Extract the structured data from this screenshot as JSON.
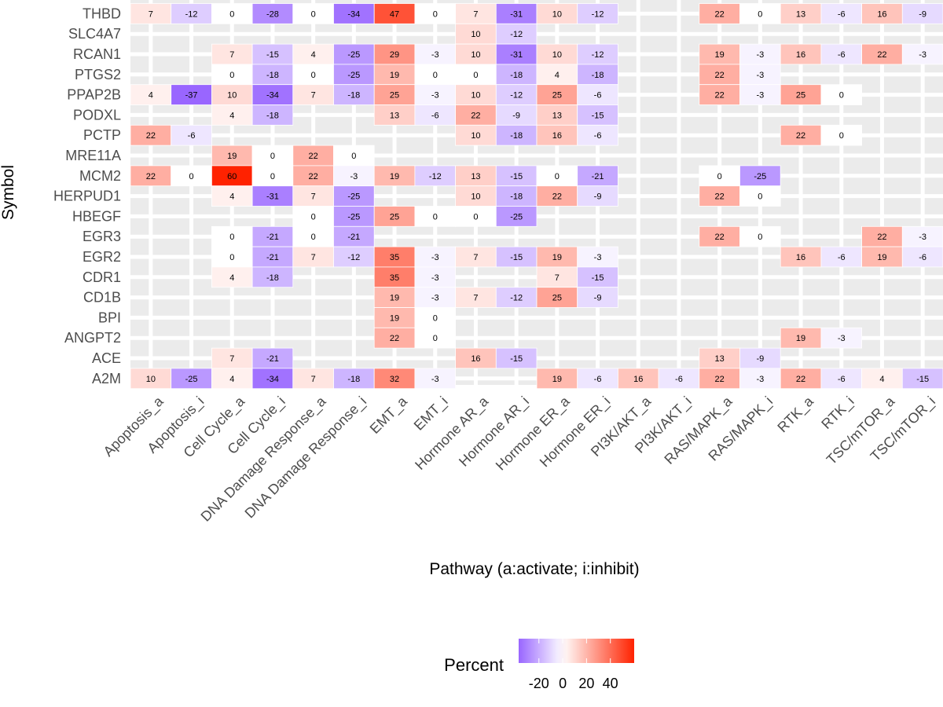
{
  "chart_data": {
    "type": "heatmap",
    "xlabel": "Pathway (a:activate; i:inhibit)",
    "ylabel": "Symbol",
    "legend_title": "Percent",
    "legend_position": "bottom",
    "grid": true,
    "color_scale": {
      "low": "#9966ff",
      "mid": "#ffffff",
      "high": "#ff2200",
      "limits": [
        -37,
        60
      ]
    },
    "legend_ticks": [
      -20,
      0,
      20,
      40
    ],
    "columns": [
      "Apoptosis_a",
      "Apoptosis_i",
      "Cell Cycle_a",
      "Cell Cycle_i",
      "DNA Damage Response_a",
      "DNA Damage Response_i",
      "EMT_a",
      "EMT_i",
      "Hormone AR_a",
      "Hormone AR_i",
      "Hormone ER_a",
      "Hormone ER_i",
      "PI3K/AKT_a",
      "PI3K/AKT_i",
      "RAS/MAPK_a",
      "RAS/MAPK_i",
      "RTK_a",
      "RTK_i",
      "TSC/mTOR_a",
      "TSC/mTOR_i"
    ],
    "rows": [
      "THBD",
      "SLC4A7",
      "RCAN1",
      "PTGS2",
      "PPAP2B",
      "PODXL",
      "PCTP",
      "MRE11A",
      "MCM2",
      "HERPUD1",
      "HBEGF",
      "EGR3",
      "EGR2",
      "CDR1",
      "CD1B",
      "BPI",
      "ANGPT2",
      "ACE",
      "A2M"
    ],
    "values": [
      [
        7,
        -12,
        0,
        -28,
        0,
        -34,
        47,
        0,
        7,
        -31,
        10,
        -12,
        null,
        null,
        22,
        0,
        13,
        -6,
        16,
        -9
      ],
      [
        null,
        null,
        null,
        null,
        null,
        null,
        null,
        null,
        10,
        -12,
        null,
        null,
        null,
        null,
        null,
        null,
        null,
        null,
        null,
        null
      ],
      [
        null,
        null,
        7,
        -15,
        4,
        -25,
        29,
        -3,
        10,
        -31,
        10,
        -12,
        null,
        null,
        19,
        -3,
        16,
        -6,
        22,
        -3
      ],
      [
        null,
        null,
        0,
        -18,
        0,
        -25,
        19,
        0,
        0,
        -18,
        4,
        -18,
        null,
        null,
        22,
        -3,
        null,
        null,
        null,
        null
      ],
      [
        4,
        -37,
        10,
        -34,
        7,
        -18,
        25,
        -3,
        10,
        -12,
        25,
        -6,
        null,
        null,
        22,
        -3,
        25,
        0,
        null,
        null
      ],
      [
        null,
        null,
        4,
        -18,
        null,
        null,
        13,
        -6,
        22,
        -9,
        13,
        -15,
        null,
        null,
        null,
        null,
        null,
        null,
        null,
        null
      ],
      [
        22,
        -6,
        null,
        null,
        null,
        null,
        null,
        null,
        10,
        -18,
        16,
        -6,
        null,
        null,
        null,
        null,
        22,
        0,
        null,
        null
      ],
      [
        null,
        null,
        19,
        0,
        22,
        0,
        null,
        null,
        null,
        null,
        null,
        null,
        null,
        null,
        null,
        null,
        null,
        null,
        null,
        null
      ],
      [
        22,
        0,
        60,
        0,
        22,
        -3,
        19,
        -12,
        13,
        -15,
        0,
        -21,
        null,
        null,
        0,
        -25,
        null,
        null,
        null,
        null
      ],
      [
        null,
        null,
        4,
        -31,
        7,
        -25,
        null,
        null,
        10,
        -18,
        22,
        -9,
        null,
        null,
        22,
        0,
        null,
        null,
        null,
        null
      ],
      [
        null,
        null,
        null,
        null,
        0,
        -25,
        25,
        0,
        0,
        -25,
        null,
        null,
        null,
        null,
        null,
        null,
        null,
        null,
        null,
        null
      ],
      [
        null,
        null,
        0,
        -21,
        0,
        -21,
        null,
        null,
        null,
        null,
        null,
        null,
        null,
        null,
        22,
        0,
        null,
        null,
        22,
        -3
      ],
      [
        null,
        null,
        0,
        -21,
        7,
        -12,
        35,
        -3,
        7,
        -15,
        19,
        -3,
        null,
        null,
        null,
        null,
        16,
        -6,
        19,
        -6
      ],
      [
        null,
        null,
        4,
        -18,
        null,
        null,
        35,
        -3,
        null,
        null,
        7,
        -15,
        null,
        null,
        null,
        null,
        null,
        null,
        null,
        null
      ],
      [
        null,
        null,
        null,
        null,
        null,
        null,
        19,
        -3,
        7,
        -12,
        25,
        -9,
        null,
        null,
        null,
        null,
        null,
        null,
        null,
        null
      ],
      [
        null,
        null,
        null,
        null,
        null,
        null,
        19,
        0,
        null,
        null,
        null,
        null,
        null,
        null,
        null,
        null,
        null,
        null,
        null,
        null
      ],
      [
        null,
        null,
        null,
        null,
        null,
        null,
        22,
        0,
        null,
        null,
        null,
        null,
        null,
        null,
        null,
        null,
        19,
        -3,
        null,
        null
      ],
      [
        null,
        null,
        7,
        -21,
        null,
        null,
        null,
        null,
        16,
        -15,
        null,
        null,
        null,
        null,
        13,
        -9,
        null,
        null,
        null,
        null
      ],
      [
        10,
        -25,
        4,
        -34,
        7,
        -18,
        32,
        -3,
        null,
        null,
        19,
        -6,
        16,
        -6,
        22,
        -3,
        22,
        -6,
        4,
        -15
      ]
    ]
  }
}
